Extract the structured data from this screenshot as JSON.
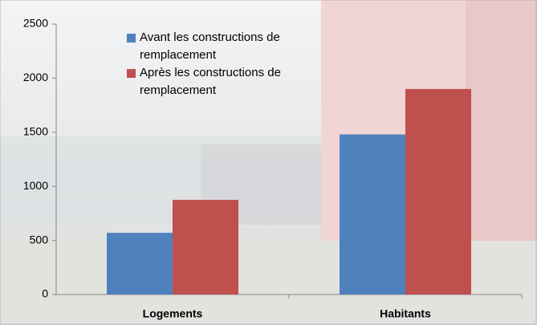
{
  "chart_data": {
    "type": "bar",
    "categories": [
      "Logements",
      "Habitants"
    ],
    "series": [
      {
        "name": "Avant les constructions de remplacement",
        "color": "#4f81bd",
        "values": [
          570,
          1480
        ]
      },
      {
        "name": "Après les constructions de remplacement",
        "color": "#c0504d",
        "values": [
          875,
          1900
        ]
      }
    ],
    "ylim": [
      0,
      2500
    ],
    "yticks": [
      0,
      500,
      1000,
      1500,
      2000,
      2500
    ],
    "grid": false,
    "legend": "top"
  }
}
